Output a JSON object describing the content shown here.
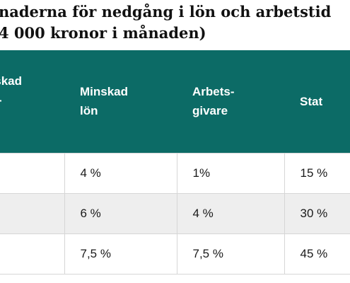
{
  "heading": {
    "line1": "naderna för nedgång i lön och arbetstid",
    "line2": "4 000 kronor i månaden)"
  },
  "table": {
    "headers": [
      "nskad\nts-",
      "Minskad\nlön",
      "Arbets-\ngivare",
      "Stat"
    ],
    "rows": [
      [
        "",
        "4 %",
        "1%",
        "15 %"
      ],
      [
        "",
        "6 %",
        "4 %",
        "30 %"
      ],
      [
        "",
        "7,5 %",
        "7,5 %",
        "45 %"
      ]
    ]
  },
  "colors": {
    "header_bg": "#0c6b66",
    "row_shaded": "#eeeeee",
    "grid": "#d6d6d6"
  }
}
